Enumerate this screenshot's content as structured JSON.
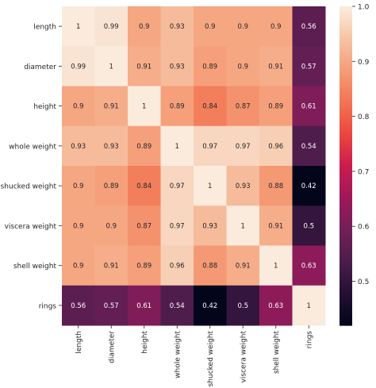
{
  "chart_data": {
    "type": "heatmap",
    "title": "",
    "xlabel": "",
    "ylabel": "",
    "row_labels": [
      "length",
      "diameter",
      "height",
      "whole weight",
      "shucked weight",
      "viscera weight",
      "shell weight",
      "rings"
    ],
    "col_labels": [
      "length",
      "diameter",
      "height",
      "whole weight",
      "shucked weight",
      "viscera weight",
      "shell weight",
      "rings"
    ],
    "values": [
      [
        1,
        0.99,
        0.9,
        0.93,
        0.9,
        0.9,
        0.9,
        0.56
      ],
      [
        0.99,
        1,
        0.91,
        0.93,
        0.89,
        0.9,
        0.91,
        0.57
      ],
      [
        0.9,
        0.91,
        1,
        0.89,
        0.84,
        0.87,
        0.89,
        0.61
      ],
      [
        0.93,
        0.93,
        0.89,
        1,
        0.97,
        0.97,
        0.96,
        0.54
      ],
      [
        0.9,
        0.89,
        0.84,
        0.97,
        1,
        0.93,
        0.88,
        0.42
      ],
      [
        0.9,
        0.9,
        0.87,
        0.97,
        0.93,
        1,
        0.91,
        0.5
      ],
      [
        0.9,
        0.91,
        0.89,
        0.96,
        0.88,
        0.91,
        1,
        0.63
      ],
      [
        0.56,
        0.57,
        0.61,
        0.54,
        0.42,
        0.5,
        0.63,
        1
      ]
    ],
    "annotations": [
      [
        "1",
        "0.99",
        "0.9",
        "0.93",
        "0.9",
        "0.9",
        "0.9",
        "0.56"
      ],
      [
        "0.99",
        "1",
        "0.91",
        "0.93",
        "0.89",
        "0.9",
        "0.91",
        "0.57"
      ],
      [
        "0.9",
        "0.91",
        "1",
        "0.89",
        "0.84",
        "0.87",
        "0.89",
        "0.61"
      ],
      [
        "0.93",
        "0.93",
        "0.89",
        "1",
        "0.97",
        "0.97",
        "0.96",
        "0.54"
      ],
      [
        "0.9",
        "0.89",
        "0.84",
        "0.97",
        "1",
        "0.93",
        "0.88",
        "0.42"
      ],
      [
        "0.9",
        "0.9",
        "0.87",
        "0.97",
        "0.93",
        "1",
        "0.91",
        "0.5"
      ],
      [
        "0.9",
        "0.91",
        "0.89",
        "0.96",
        "0.88",
        "0.91",
        "1",
        "0.63"
      ],
      [
        "0.56",
        "0.57",
        "0.61",
        "0.54",
        "0.42",
        "0.5",
        "0.63",
        "1"
      ]
    ],
    "colorbar": {
      "range": [
        0.42,
        1.0
      ],
      "ticks": [
        0.5,
        0.6,
        0.7,
        0.8,
        0.9,
        1.0
      ],
      "tick_labels": [
        "0.5",
        "0.6",
        "0.7",
        "0.8",
        "0.9",
        "1.0"
      ]
    },
    "colormap": "rocket",
    "grid": false
  }
}
